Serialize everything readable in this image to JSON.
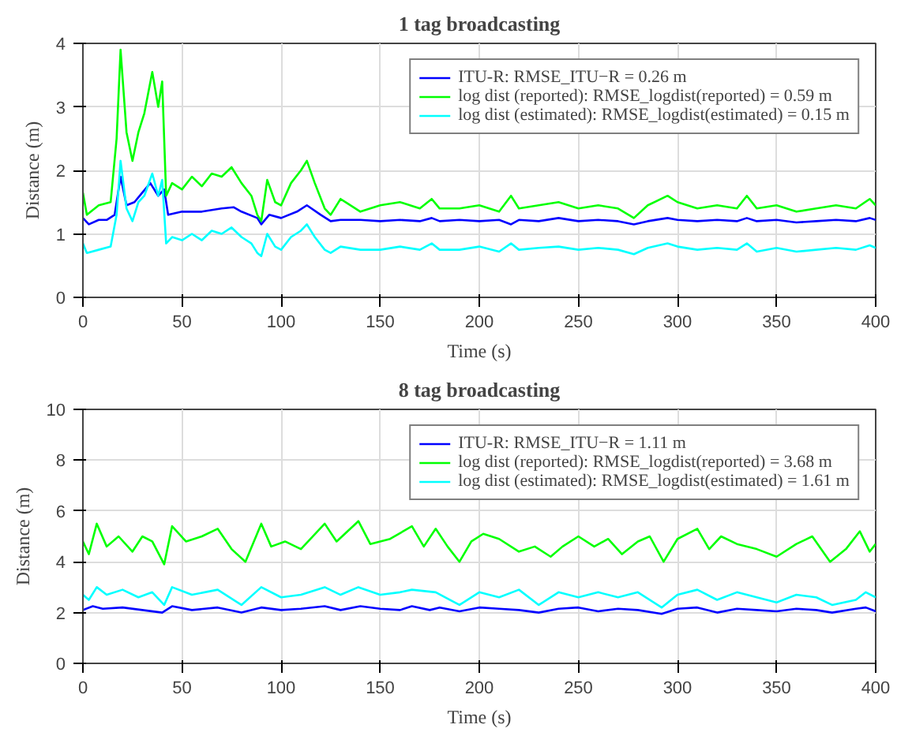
{
  "chart_data": [
    {
      "type": "line",
      "title": "1 tag broadcasting",
      "xlabel": "Time (s)",
      "ylabel": "Distance (m)",
      "xlim": [
        0,
        400
      ],
      "xticks": [
        0,
        50,
        100,
        150,
        200,
        250,
        300,
        350,
        400
      ],
      "ylim": [
        0,
        4
      ],
      "yticks": [
        0,
        1,
        2,
        3,
        4
      ],
      "grid": true,
      "legend": "top right",
      "line_style": "solid",
      "marker": "none",
      "series": [
        {
          "name": "ITU-R: RMSE_ITU−R = 0.26 m",
          "color": "#0000ff",
          "x": [
            0,
            3,
            8,
            12,
            16,
            19,
            22,
            26,
            30,
            34,
            38,
            41,
            43,
            50,
            60,
            70,
            76,
            80,
            88,
            90,
            94,
            100,
            108,
            113,
            120,
            125,
            130,
            140,
            150,
            160,
            170,
            176,
            180,
            190,
            200,
            210,
            216,
            220,
            230,
            240,
            250,
            260,
            270,
            278,
            285,
            295,
            300,
            310,
            320,
            330,
            335,
            340,
            350,
            360,
            370,
            380,
            390,
            397,
            400
          ],
          "values": [
            1.25,
            1.15,
            1.22,
            1.22,
            1.3,
            1.9,
            1.45,
            1.5,
            1.65,
            1.8,
            1.6,
            1.7,
            1.3,
            1.35,
            1.35,
            1.4,
            1.42,
            1.35,
            1.25,
            1.15,
            1.3,
            1.25,
            1.35,
            1.45,
            1.3,
            1.2,
            1.22,
            1.22,
            1.2,
            1.22,
            1.2,
            1.25,
            1.2,
            1.22,
            1.2,
            1.22,
            1.15,
            1.22,
            1.2,
            1.25,
            1.2,
            1.22,
            1.2,
            1.15,
            1.2,
            1.25,
            1.22,
            1.2,
            1.22,
            1.2,
            1.25,
            1.2,
            1.22,
            1.18,
            1.2,
            1.22,
            1.2,
            1.25,
            1.22
          ]
        },
        {
          "name": "log dist (reported): RMSE_logdist(reported) = 0.59 m",
          "color": "#00ff00",
          "x": [
            0,
            2,
            8,
            14,
            17,
            19,
            22,
            25,
            28,
            31,
            35,
            38,
            40,
            42,
            45,
            50,
            55,
            60,
            65,
            70,
            75,
            80,
            85,
            88,
            90,
            93,
            97,
            100,
            105,
            110,
            113,
            117,
            122,
            125,
            130,
            140,
            150,
            160,
            170,
            176,
            180,
            190,
            200,
            210,
            216,
            220,
            230,
            240,
            250,
            260,
            270,
            278,
            285,
            295,
            300,
            310,
            320,
            330,
            335,
            340,
            350,
            360,
            370,
            380,
            390,
            397,
            400
          ],
          "values": [
            1.65,
            1.3,
            1.45,
            1.5,
            2.5,
            3.9,
            2.6,
            2.15,
            2.6,
            2.9,
            3.55,
            3.0,
            3.4,
            1.6,
            1.8,
            1.7,
            1.9,
            1.75,
            1.95,
            1.9,
            2.05,
            1.8,
            1.6,
            1.3,
            1.2,
            1.85,
            1.5,
            1.45,
            1.8,
            2.0,
            2.15,
            1.8,
            1.4,
            1.3,
            1.55,
            1.35,
            1.45,
            1.5,
            1.4,
            1.55,
            1.4,
            1.4,
            1.45,
            1.35,
            1.6,
            1.4,
            1.45,
            1.5,
            1.4,
            1.45,
            1.4,
            1.25,
            1.45,
            1.6,
            1.5,
            1.4,
            1.45,
            1.4,
            1.6,
            1.4,
            1.45,
            1.35,
            1.4,
            1.45,
            1.4,
            1.55,
            1.45
          ]
        },
        {
          "name": "log dist (estimated): RMSE_logdist(estimated) = 0.15 m",
          "color": "#00ffff",
          "x": [
            0,
            2,
            8,
            14,
            17,
            19,
            22,
            25,
            28,
            31,
            35,
            38,
            40,
            42,
            45,
            50,
            55,
            60,
            65,
            70,
            75,
            80,
            85,
            88,
            90,
            93,
            97,
            100,
            105,
            110,
            113,
            117,
            122,
            125,
            130,
            140,
            150,
            160,
            170,
            176,
            180,
            190,
            200,
            210,
            216,
            220,
            230,
            240,
            250,
            260,
            270,
            278,
            285,
            295,
            300,
            310,
            320,
            330,
            335,
            340,
            350,
            360,
            370,
            380,
            390,
            397,
            400
          ],
          "values": [
            0.85,
            0.7,
            0.75,
            0.8,
            1.3,
            2.15,
            1.4,
            1.2,
            1.5,
            1.6,
            1.95,
            1.6,
            1.85,
            0.85,
            0.95,
            0.9,
            1.0,
            0.9,
            1.05,
            1.0,
            1.1,
            0.95,
            0.85,
            0.7,
            0.65,
            1.0,
            0.8,
            0.75,
            0.95,
            1.05,
            1.15,
            0.95,
            0.75,
            0.7,
            0.8,
            0.75,
            0.75,
            0.8,
            0.75,
            0.85,
            0.75,
            0.75,
            0.8,
            0.72,
            0.85,
            0.75,
            0.78,
            0.8,
            0.75,
            0.78,
            0.75,
            0.68,
            0.78,
            0.85,
            0.8,
            0.75,
            0.78,
            0.75,
            0.85,
            0.72,
            0.78,
            0.72,
            0.75,
            0.78,
            0.75,
            0.82,
            0.78
          ]
        }
      ]
    },
    {
      "type": "line",
      "title": "8 tag broadcasting",
      "xlabel": "Time (s)",
      "ylabel": "Distance (m)",
      "xlim": [
        0,
        400
      ],
      "xticks": [
        0,
        50,
        100,
        150,
        200,
        250,
        300,
        350,
        400
      ],
      "ylim": [
        0,
        10
      ],
      "yticks": [
        0,
        2,
        4,
        6,
        8,
        10
      ],
      "grid": true,
      "legend": "top right",
      "line_style": "solid",
      "marker": "none",
      "series": [
        {
          "name": "ITU-R: RMSE_ITU−R = 1.11 m",
          "color": "#0000ff",
          "x": [
            0,
            5,
            10,
            20,
            30,
            40,
            45,
            55,
            68,
            80,
            90,
            100,
            110,
            122,
            130,
            140,
            150,
            160,
            166,
            175,
            180,
            190,
            200,
            210,
            220,
            230,
            240,
            250,
            260,
            270,
            280,
            292,
            300,
            310,
            320,
            330,
            340,
            350,
            360,
            370,
            378,
            390,
            395,
            400
          ],
          "values": [
            2.1,
            2.25,
            2.15,
            2.2,
            2.1,
            2.0,
            2.25,
            2.1,
            2.2,
            2.0,
            2.2,
            2.1,
            2.15,
            2.25,
            2.1,
            2.25,
            2.15,
            2.1,
            2.25,
            2.1,
            2.2,
            2.05,
            2.2,
            2.15,
            2.1,
            2.0,
            2.15,
            2.2,
            2.05,
            2.15,
            2.1,
            1.95,
            2.15,
            2.2,
            2.0,
            2.15,
            2.1,
            2.05,
            2.15,
            2.1,
            2.0,
            2.15,
            2.2,
            2.05
          ]
        },
        {
          "name": "log dist (reported): RMSE_logdist(reported) = 3.68 m",
          "color": "#00ff00",
          "x": [
            0,
            3,
            7,
            12,
            18,
            25,
            30,
            35,
            41,
            45,
            52,
            60,
            68,
            75,
            82,
            90,
            95,
            102,
            110,
            122,
            128,
            139,
            145,
            155,
            166,
            172,
            178,
            184,
            190,
            196,
            202,
            210,
            220,
            228,
            236,
            242,
            250,
            258,
            265,
            272,
            280,
            286,
            293,
            300,
            310,
            316,
            322,
            330,
            340,
            350,
            360,
            368,
            377,
            385,
            392,
            397,
            400
          ],
          "values": [
            4.8,
            4.3,
            5.5,
            4.6,
            5.0,
            4.4,
            5.0,
            4.8,
            3.9,
            5.4,
            4.8,
            5.0,
            5.3,
            4.5,
            4.0,
            5.5,
            4.6,
            4.8,
            4.5,
            5.5,
            4.8,
            5.6,
            4.7,
            4.9,
            5.4,
            4.6,
            5.3,
            4.6,
            4.0,
            4.8,
            5.1,
            4.9,
            4.4,
            4.6,
            4.2,
            4.6,
            5.0,
            4.6,
            4.9,
            4.3,
            4.8,
            5.0,
            4.0,
            4.9,
            5.3,
            4.5,
            5.0,
            4.7,
            4.5,
            4.2,
            4.7,
            5.0,
            4.0,
            4.5,
            5.2,
            4.4,
            4.7
          ]
        },
        {
          "name": "log dist (estimated): RMSE_logdist(estimated) = 1.61 m",
          "color": "#00ffff",
          "x": [
            0,
            3,
            7,
            12,
            20,
            28,
            35,
            41,
            45,
            55,
            68,
            80,
            90,
            100,
            110,
            122,
            130,
            139,
            150,
            160,
            166,
            178,
            190,
            200,
            210,
            220,
            230,
            240,
            250,
            260,
            270,
            280,
            292,
            300,
            310,
            320,
            330,
            340,
            350,
            360,
            370,
            378,
            390,
            395,
            400
          ],
          "values": [
            2.7,
            2.5,
            3.0,
            2.7,
            2.9,
            2.6,
            2.8,
            2.3,
            3.0,
            2.7,
            2.9,
            2.3,
            3.0,
            2.6,
            2.7,
            3.0,
            2.7,
            3.0,
            2.7,
            2.8,
            2.9,
            2.8,
            2.3,
            2.8,
            2.6,
            2.9,
            2.3,
            2.8,
            2.6,
            2.8,
            2.6,
            2.8,
            2.2,
            2.7,
            2.9,
            2.5,
            2.8,
            2.6,
            2.4,
            2.7,
            2.6,
            2.3,
            2.5,
            2.8,
            2.6
          ]
        }
      ]
    }
  ]
}
